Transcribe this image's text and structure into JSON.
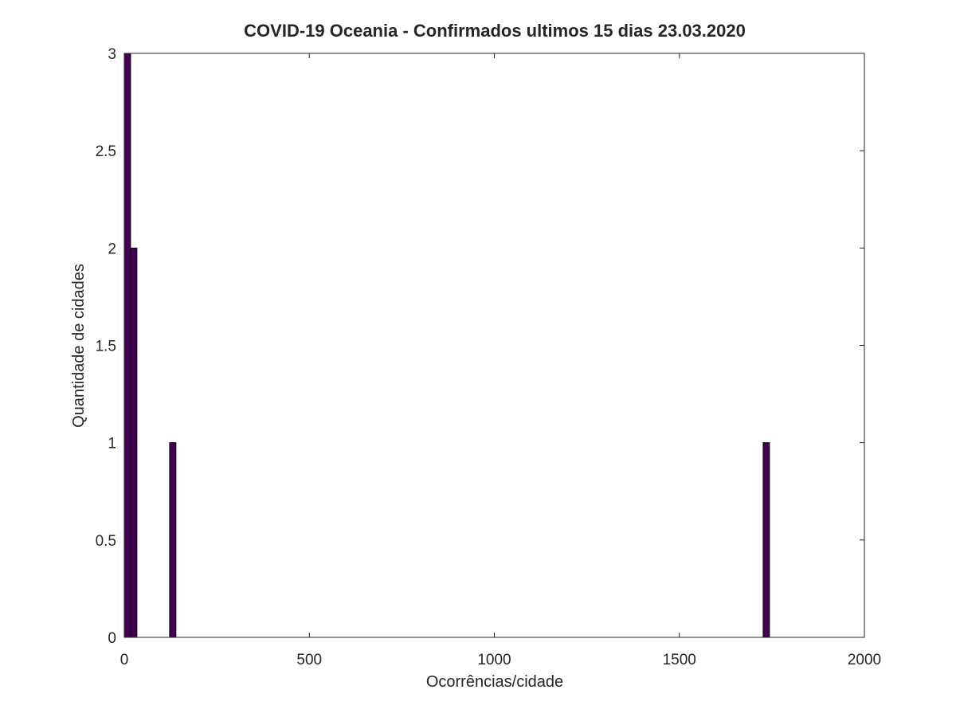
{
  "chart_data": {
    "type": "bar",
    "title": "COVID-19 Oceania - Confirmados ultimos 15 dias 23.03.2020",
    "xlabel": "Ocorrências/cidade",
    "ylabel": "Quantidade de cidades",
    "xlim": [
      0,
      2000
    ],
    "ylim": [
      0,
      3
    ],
    "x_ticks": [
      0,
      500,
      1000,
      1500,
      2000
    ],
    "y_ticks": [
      0,
      0.5,
      1,
      1.5,
      2,
      2.5,
      3
    ],
    "bar_width": 17,
    "bars": [
      {
        "x": 8.5,
        "value": 3
      },
      {
        "x": 25.5,
        "value": 2
      },
      {
        "x": 131,
        "value": 1
      },
      {
        "x": 1735,
        "value": 1
      }
    ],
    "grid": false,
    "bar_color": "#440154"
  }
}
